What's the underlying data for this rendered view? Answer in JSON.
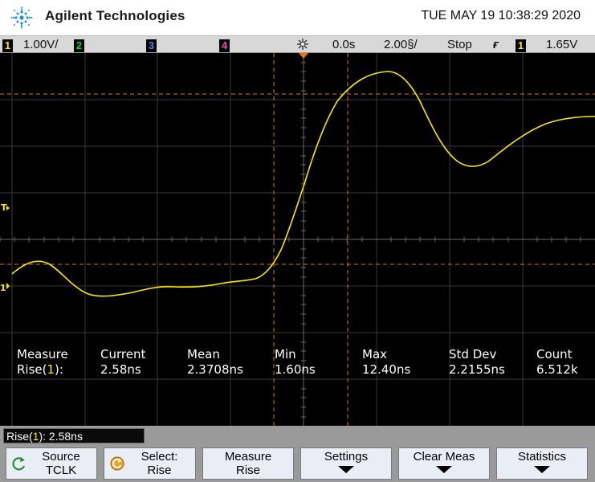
{
  "header": {
    "brand": "Agilent Technologies",
    "datetime": "TUE MAY 19 10:38:29 2020"
  },
  "status": {
    "ch1_num": "1",
    "ch1_scale": "1.00V/",
    "ch2_num": "2",
    "ch3_num": "3",
    "ch4_num": "4",
    "delay": "0.0s",
    "timebase": "2.00§/",
    "run_state": "Stop",
    "trig_channel": "1",
    "trig_level": "1.65V"
  },
  "screen": {
    "trigger_marker": "T",
    "ground_marker": "1",
    "trace_color": "#ffea00"
  },
  "measurements": {
    "col_measure": [
      "Measure",
      "Rise("
    ],
    "rise_ch": "1",
    "rise_suffix": "):",
    "headers": [
      "Current",
      "Mean",
      "Min",
      "Max",
      "Std Dev",
      "Count"
    ],
    "values": [
      "2.58ns",
      "2.3708ns",
      "1.60ns",
      "12.40ns",
      "2.2155ns",
      "6.512k"
    ]
  },
  "softkeys": {
    "rise_prefix": "Rise(",
    "rise_ch": "1",
    "rise_value": "): 2.58ns",
    "source_line1": "Source",
    "source_line2": "TCLK",
    "select_line1": "Select:",
    "select_line2": "Rise",
    "measure_line1": "Measure",
    "measure_line2": "Rise",
    "settings_label": "Settings",
    "clear_label": "Clear Meas",
    "statistics_label": "Statistics"
  }
}
